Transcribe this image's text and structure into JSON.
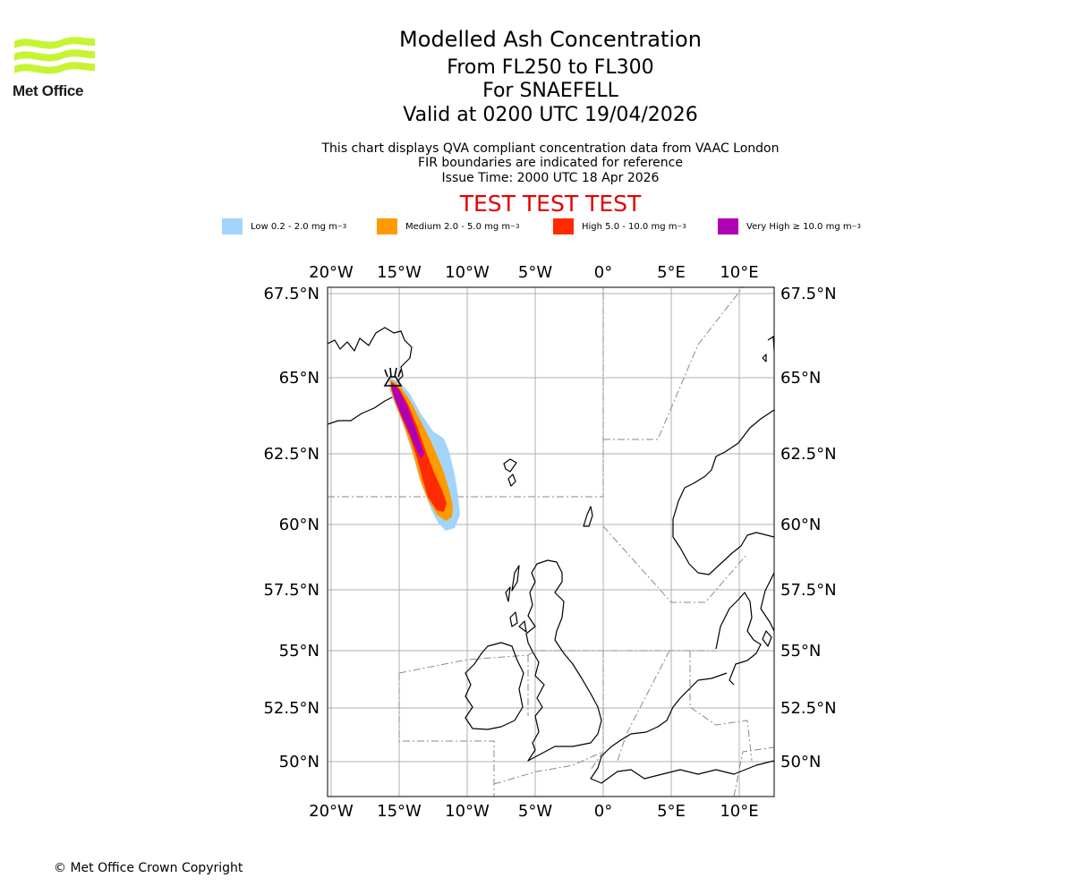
{
  "brand": {
    "name": "Met Office",
    "logo_color": "#c6f432"
  },
  "header": {
    "title": "Modelled Ash Concentration",
    "flight_levels": "From FL250 to FL300",
    "volcano": "For SNAEFELL",
    "valid_time": "Valid at 0200 UTC 19/04/2026",
    "description": "This chart displays QVA compliant concentration data from VAAC London",
    "fir_note": "FIR boundaries are indicated for reference",
    "issue_time": "Issue Time: 2000 UTC 18 Apr 2026",
    "test_banner": "TEST TEST TEST"
  },
  "legend": [
    {
      "label": "Low 0.2 - 2.0 mg m",
      "sup": "−3",
      "color": "#a3d5fb"
    },
    {
      "label": "Medium 2.0 - 5.0 mg m",
      "sup": "−3",
      "color": "#ff9a00"
    },
    {
      "label": "High 5.0 - 10.0 mg m",
      "sup": "−3",
      "color": "#ff2b00"
    },
    {
      "label": "Very High ≥ 10.0 mg m",
      "sup": "−3",
      "color": "#b000b6"
    }
  ],
  "map": {
    "lon_ticks": [
      "20°W",
      "15°W",
      "10°W",
      "5°W",
      "0°",
      "5°E",
      "10°E"
    ],
    "lat_ticks": [
      "67.5°N",
      "65°N",
      "62.5°N",
      "60°N",
      "57.5°N",
      "55°N",
      "52.5°N",
      "50°N"
    ],
    "volcano_symbol": "volcano-icon"
  },
  "footer": {
    "copyright": "© Met Office Crown Copyright"
  }
}
